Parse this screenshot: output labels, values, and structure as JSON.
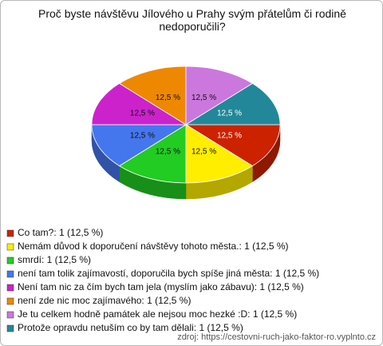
{
  "chart_data": {
    "type": "pie3d",
    "title": "Proč byste návštěvu Jílového u Prahy svým přátelům či rodině nedoporučili?",
    "categories": [
      "Co tam?: 1 (12,5 %)",
      "Nemám důvod k doporučení návštěvy tohoto města.: 1 (12,5 %)",
      "smrdí: 1 (12,5 %)",
      "není tam tolik zajímavostí, doporučila bych spíše jiná města: 1 (12,5 %)",
      "Není tam nic za čím bych tam jela (myslím jako zábavu): 1 (12,5 %)",
      "není zde nic moc zajímavého: 1 (12,5 %)",
      "Je tu celkem hodně památek ale nejsou moc hezké :D: 1 (12,5 %)",
      "Protože opravdu netuším co by tam dělali: 1 (12,5 %)"
    ],
    "values": [
      12.5,
      12.5,
      12.5,
      12.5,
      12.5,
      12.5,
      12.5,
      12.5
    ],
    "value_labels": [
      "12,5 %",
      "12,5 %",
      "12,5 %",
      "12,5 %",
      "12,5 %",
      "12,5 %",
      "12,5 %",
      "12,5 %"
    ],
    "colors": [
      "#cc2200",
      "#ffee00",
      "#22cc22",
      "#4477ee",
      "#cc22cc",
      "#ee8800",
      "#cc77dd",
      "#228899"
    ],
    "source": "zdroj: https://cestovni-ruch-jako-faktor-ro.vyplnto.cz"
  }
}
